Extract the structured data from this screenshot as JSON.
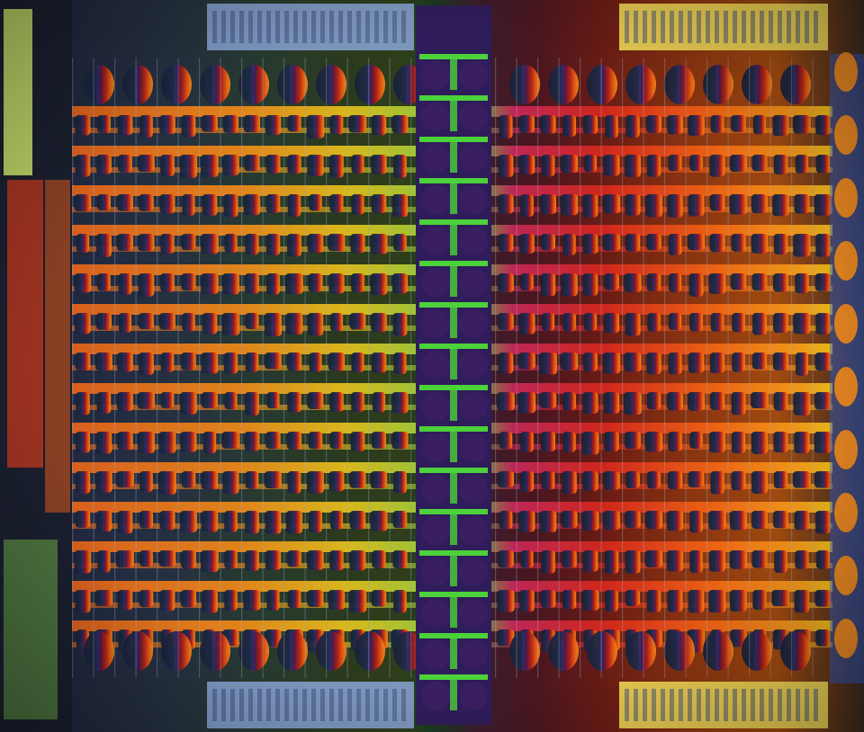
{
  "image": {
    "subject": "die-shot",
    "palette": {
      "left_dark": "#1f2740",
      "left_accent": "#f2701a",
      "left_accent_2": "#e8c21c",
      "center_green": "#4cd23a",
      "center_purple": "#3a1e62",
      "right_red": "#d2201e",
      "right_orange": "#f48a14",
      "right_yellow": "#f2c41a",
      "blue_edge": "#2a5ed8",
      "io_blue_grey": "#8aa6d6",
      "io_yellow": "#f5e05a",
      "left_io_green": "#c8e06a"
    }
  }
}
